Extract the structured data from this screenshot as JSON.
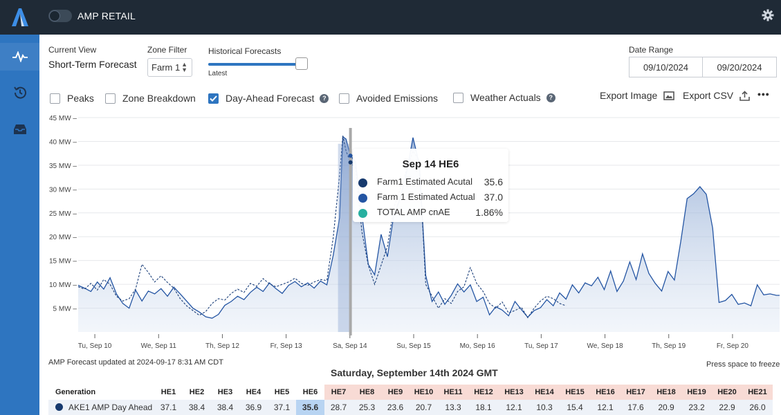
{
  "app": {
    "title": "AMP RETAIL"
  },
  "icons": {
    "logo": "logo-icon",
    "pulse": "pulse-icon",
    "history": "history-icon",
    "inbox": "inbox-icon",
    "gear": "gear-icon"
  },
  "controls": {
    "current_view_label": "Current View",
    "current_view_value": "Short-Term Forecast",
    "zone_filter_label": "Zone Filter",
    "zone_filter_value": "Farm 1",
    "historical_label": "Historical Forecasts",
    "historical_sub": "Latest",
    "historical_level": 0.95,
    "date_range_label": "Date Range",
    "date_from": "09/10/2024",
    "date_to": "09/20/2024"
  },
  "checkboxes": [
    {
      "label": "Peaks",
      "checked": false
    },
    {
      "label": "Zone Breakdown",
      "checked": false
    },
    {
      "label": "Day-Ahead Forecast",
      "checked": true,
      "help": "?"
    },
    {
      "label": "Avoided Emissions",
      "checked": false
    },
    {
      "label": "Weather Actuals",
      "checked": false,
      "help": "?"
    }
  ],
  "actions": {
    "export_image": "Export Image",
    "export_csv": "Export CSV",
    "more": "•••"
  },
  "chart_data": {
    "type": "area",
    "y_unit": "MW",
    "ylim": [
      0,
      45
    ],
    "y_ticks": [
      "5 MW –",
      "10 MW –",
      "15 MW –",
      "20 MW –",
      "25 MW –",
      "30 MW –",
      "35 MW –",
      "40 MW –",
      "45 MW –"
    ],
    "y_tick_values": [
      5,
      10,
      15,
      20,
      25,
      30,
      35,
      40,
      45
    ],
    "x_ticks": [
      "Tu, Sep 10",
      "We, Sep 11",
      "Th, Sep 12",
      "Fr, Sep 13",
      "Sa, Sep 14",
      "Su, Sep 15",
      "Mo, Sep 16",
      "Tu, Sep 17",
      "We, Sep 18",
      "Th, Sep 19",
      "Fr, Sep 20"
    ],
    "x_day_range": [
      0,
      11
    ],
    "cursor_day": 4.27,
    "series": [
      {
        "line": "solid",
        "x": [
          0,
          0.1,
          0.2,
          0.3,
          0.4,
          0.5,
          0.6,
          0.7,
          0.8,
          0.9,
          1.0,
          1.1,
          1.2,
          1.3,
          1.4,
          1.5,
          1.6,
          1.7,
          1.8,
          1.9,
          2.0,
          2.1,
          2.2,
          2.3,
          2.4,
          2.5,
          2.6,
          2.7,
          2.8,
          2.9,
          3.0,
          3.1,
          3.2,
          3.3,
          3.4,
          3.5,
          3.6,
          3.7,
          3.8,
          3.9,
          4.0,
          4.1,
          4.15,
          4.2,
          4.27,
          4.35,
          4.45,
          4.55,
          4.65,
          4.75,
          4.85,
          4.95,
          5.05,
          5.15,
          5.25,
          5.35,
          5.45,
          5.55,
          5.65,
          5.75,
          5.85,
          5.95,
          6.05,
          6.15,
          6.25,
          6.35,
          6.45,
          6.55,
          6.65,
          6.75,
          6.85,
          6.95,
          7.05,
          7.15,
          7.25,
          7.35,
          7.45,
          7.55,
          7.65,
          7.75,
          7.85,
          7.95,
          8.05,
          8.15,
          8.25,
          8.35,
          8.45,
          8.55,
          8.65,
          8.75,
          8.85,
          8.95,
          9.05,
          9.15,
          9.25,
          9.35,
          9.45,
          9.55,
          9.65,
          9.75,
          9.85,
          9.95,
          10.05,
          10.15,
          10.25,
          10.35,
          10.45,
          10.55,
          10.65,
          10.75,
          10.85,
          10.95,
          11.0
        ],
        "values": [
          9.8,
          9.2,
          8.5,
          10.5,
          9.0,
          11.4,
          8.0,
          6.0,
          5.0,
          8.8,
          6.5,
          8.6,
          8.0,
          9.1,
          7.5,
          9.4,
          8.0,
          6.5,
          5.0,
          4.2,
          3.2,
          2.9,
          3.7,
          5.6,
          6.4,
          7.5,
          6.8,
          8.3,
          9.4,
          8.5,
          10.3,
          9.1,
          8.1,
          9.8,
          10.6,
          9.5,
          10.3,
          9.2,
          10.7,
          9.9,
          16.1,
          24.0,
          41.0,
          40.5,
          37.0,
          35.8,
          24.5,
          14.2,
          12.0,
          20.5,
          15.8,
          24.6,
          28.0,
          33.5,
          40.8,
          35.2,
          11.9,
          6.4,
          8.4,
          5.8,
          7.7,
          10.1,
          8.4,
          9.9,
          6.4,
          7.3,
          3.6,
          5.3,
          4.6,
          3.4,
          6.4,
          4.7,
          3.1,
          4.5,
          5.1,
          6.8,
          5.5,
          8.2,
          6.9,
          9.9,
          8.2,
          10.3,
          9.7,
          11.5,
          8.9,
          12.8,
          8.5,
          10.7,
          14.7,
          11.0,
          16.4,
          12.3,
          10.2,
          8.6,
          12.7,
          10.9,
          19.0,
          28.0,
          29.0,
          30.5,
          28.9,
          21.8,
          6.2,
          6.6,
          7.9,
          5.8,
          6.1,
          5.5,
          9.9,
          7.8,
          8.0,
          7.7,
          7.7
        ]
      },
      {
        "line": "dashed",
        "x": [
          0,
          0.1,
          0.2,
          0.3,
          0.4,
          0.5,
          0.6,
          0.7,
          0.8,
          0.9,
          1.0,
          1.1,
          1.2,
          1.3,
          1.4,
          1.5,
          1.6,
          1.7,
          1.8,
          1.9,
          2.0,
          2.1,
          2.2,
          2.3,
          2.4,
          2.5,
          2.6,
          2.7,
          2.8,
          2.9,
          3.0,
          3.1,
          3.2,
          3.3,
          3.4,
          3.5,
          3.6,
          3.7,
          3.8,
          3.9,
          4.0,
          4.1,
          4.15,
          4.2,
          4.27,
          4.35,
          4.45,
          4.55,
          4.65,
          4.75,
          4.85,
          4.95,
          5.05,
          5.15,
          5.25,
          5.35,
          5.45,
          5.55,
          5.65,
          5.75,
          5.85,
          5.95,
          6.05,
          6.15,
          6.25,
          6.35,
          6.45,
          6.55,
          6.65,
          6.75,
          6.85,
          6.95,
          7.05,
          7.15,
          7.25,
          7.35,
          7.45,
          7.55,
          7.65
        ],
        "values": [
          9.5,
          9.0,
          10.2,
          8.8,
          11.0,
          10.0,
          7.5,
          6.5,
          7.0,
          9.0,
          14.2,
          12.5,
          10.5,
          11.8,
          10.4,
          9.2,
          7.0,
          5.5,
          4.5,
          3.5,
          4.3,
          6.0,
          7.0,
          6.7,
          8.1,
          9.0,
          8.3,
          10.2,
          9.6,
          11.2,
          10.1,
          9.5,
          10.0,
          10.5,
          11.3,
          10.2,
          9.8,
          10.5,
          11.0,
          10.8,
          19.8,
          33.0,
          41.2,
          38.0,
          35.6,
          34.5,
          21.0,
          14.0,
          10.0,
          14.0,
          18.0,
          26.0,
          30.0,
          34.0,
          38.0,
          36.0,
          10.0,
          7.5,
          5.0,
          7.0,
          6.0,
          8.5,
          9.5,
          13.5,
          10.2,
          8.5,
          6.0,
          5.0,
          6.3,
          4.0,
          4.5,
          5.2,
          3.0,
          5.0,
          6.5,
          7.5,
          7.0,
          6.0,
          5.5
        ]
      }
    ]
  },
  "tooltip": {
    "title": "Sep 14 HE6",
    "rows": [
      {
        "name": "Farm1 Estimated Acutal",
        "value": "35.6",
        "color": "#173a6e"
      },
      {
        "name": "Farm 1 Estimated Actual",
        "value": "37.0",
        "color": "#2455a3"
      },
      {
        "name": "TOTAL AMP cnAE",
        "value": "1.86%",
        "color": "#27b0a0"
      }
    ]
  },
  "footer": {
    "updated": "AMP Forecast updated at 2024-09-17 8:31 AM CDT",
    "freeze": "Press space to freeze",
    "day_title": "Saturday, September 14th 2024 GMT"
  },
  "table": {
    "header_first": "Generation",
    "columns": [
      "HE1",
      "HE2",
      "HE3",
      "HE4",
      "HE5",
      "HE6",
      "HE7",
      "HE8",
      "HE9",
      "HE10",
      "HE11",
      "HE12",
      "HE13",
      "HE14",
      "HE15",
      "HE16",
      "HE17",
      "HE18",
      "HE19",
      "HE20",
      "HE21"
    ],
    "rows": [
      {
        "name": "AKE1 AMP Day Ahead",
        "values": [
          "37.1",
          "38.4",
          "38.4",
          "36.9",
          "37.1",
          "35.6",
          "28.7",
          "25.3",
          "23.6",
          "20.7",
          "13.3",
          "18.1",
          "12.1",
          "10.3",
          "15.4",
          "12.1",
          "17.6",
          "20.9",
          "23.2",
          "22.9",
          "26.0"
        ]
      }
    ]
  },
  "colors": {
    "rail": "#2e75c0",
    "topbar": "#1f2a36",
    "accent": "#2e75c0",
    "line_dark": "#1b3f7a",
    "line_main": "#2455a3",
    "future_header": "#f8dbd5",
    "highlight": "#b8d4f2"
  }
}
